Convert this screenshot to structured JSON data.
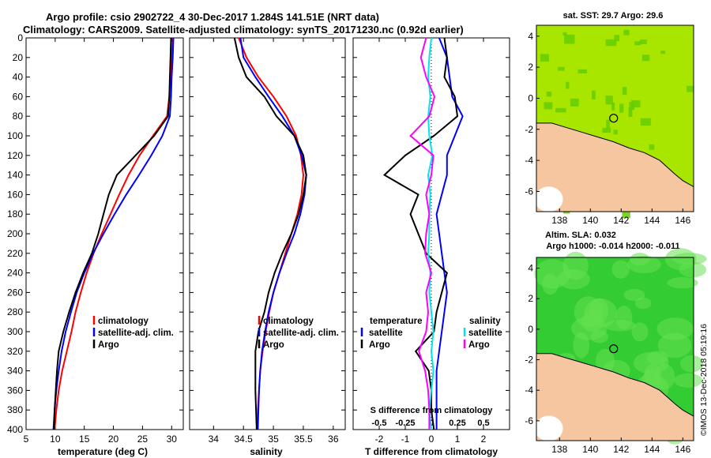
{
  "titles": {
    "line1": "Argo profile: csio 2902722_4 30-Dec-2017 1.284S 141.51E (NRT data)",
    "line2": "Climatology: CARS2009. Satellite-adjusted climatology: synTS_20171230.nc (0.92d earlier)"
  },
  "colors": {
    "climatology": "#ff0000",
    "satellite": "#0000ff",
    "argo": "#000000",
    "sal_satellite": "#00e5ee",
    "sal_argo": "#ff00ff",
    "land": "#f5c6a0",
    "sst_sea": "#a8e600",
    "sst_sea_dark": "#66cc00",
    "sla_sea": "#33cc33",
    "sla_sea_light": "#66e050"
  },
  "depth_axis": {
    "range": [
      0,
      400
    ],
    "ticks": [
      "0",
      "20",
      "40",
      "60",
      "80",
      "100",
      "120",
      "140",
      "160",
      "180",
      "200",
      "220",
      "240",
      "260",
      "280",
      "300",
      "320",
      "340",
      "360",
      "380",
      "400"
    ]
  },
  "chart_data": [
    {
      "type": "line",
      "name": "temperature",
      "xlabel": "temperature (deg C)",
      "xlim": [
        5,
        32
      ],
      "xticks": [
        "5",
        "10",
        "15",
        "20",
        "25",
        "30"
      ],
      "xtick_values": [
        5,
        10,
        15,
        20,
        25,
        30
      ],
      "legend": [
        "climatology",
        "satellite-adj. clim.",
        "Argo"
      ],
      "y": [
        0,
        20,
        40,
        60,
        80,
        100,
        120,
        140,
        160,
        180,
        200,
        220,
        240,
        260,
        280,
        300,
        320,
        340,
        360,
        380,
        400
      ],
      "series": [
        {
          "name": "climatology",
          "color": "climatology",
          "x": [
            30.2,
            30.0,
            29.8,
            29.6,
            29.2,
            26.8,
            24.5,
            22.6,
            21.0,
            19.5,
            18.0,
            16.6,
            15.4,
            14.4,
            13.5,
            12.8,
            12.0,
            11.2,
            10.6,
            10.2,
            9.9
          ]
        },
        {
          "name": "satellite-adj. clim.",
          "color": "satellite",
          "x": [
            30.3,
            30.2,
            30.0,
            29.9,
            29.7,
            28.4,
            26.5,
            24.4,
            22.2,
            20.2,
            18.3,
            16.5,
            15.0,
            13.7,
            12.7,
            11.8,
            11.1,
            10.6,
            10.2,
            9.9,
            9.7
          ]
        },
        {
          "name": "Argo",
          "color": "argo",
          "x": [
            29.9,
            29.8,
            29.7,
            29.6,
            29.4,
            27.0,
            23.8,
            20.6,
            19.2,
            18.3,
            17.4,
            16.3,
            14.8,
            13.5,
            12.4,
            11.4,
            10.6,
            10.3,
            10.1,
            9.9,
            9.8
          ]
        }
      ]
    },
    {
      "type": "line",
      "name": "salinity",
      "xlabel": "salinity",
      "xlim": [
        33.6,
        36.2
      ],
      "xticks": [
        "34",
        "34.5",
        "35",
        "35.5",
        "36"
      ],
      "xtick_values": [
        34,
        34.5,
        35,
        35.5,
        36
      ],
      "legend": [
        "climatology",
        "satellite-adj. clim.",
        "Argo"
      ],
      "y": [
        0,
        20,
        40,
        60,
        80,
        100,
        120,
        140,
        160,
        180,
        200,
        220,
        240,
        260,
        280,
        300,
        320,
        340,
        360,
        380,
        400
      ],
      "series": [
        {
          "name": "climatology",
          "color": "climatology",
          "x": [
            34.42,
            34.55,
            34.75,
            35.0,
            35.22,
            35.38,
            35.46,
            35.5,
            35.47,
            35.4,
            35.3,
            35.2,
            35.1,
            35.0,
            34.93,
            34.87,
            34.82,
            34.78,
            34.76,
            34.74,
            34.73
          ]
        },
        {
          "name": "satellite-adj. clim.",
          "color": "satellite",
          "x": [
            34.45,
            34.5,
            34.7,
            34.92,
            35.15,
            35.35,
            35.47,
            35.55,
            35.52,
            35.45,
            35.35,
            35.22,
            35.1,
            35.0,
            34.92,
            34.86,
            34.81,
            34.78,
            34.76,
            34.75,
            34.74
          ]
        },
        {
          "name": "Argo",
          "color": "argo",
          "x": [
            34.35,
            34.42,
            34.55,
            34.85,
            35.05,
            35.35,
            35.5,
            35.55,
            35.5,
            35.42,
            35.3,
            35.15,
            35.02,
            34.92,
            34.85,
            34.75,
            34.7,
            34.7,
            34.7,
            34.71,
            34.72
          ]
        }
      ]
    },
    {
      "type": "line",
      "name": "difference",
      "xlabel": "T difference from climatology",
      "xlabel_top": "S difference from climatology",
      "xlim": [
        -3,
        3
      ],
      "xticks": [
        "-2",
        "-1",
        "0",
        "1",
        "2"
      ],
      "xtick_values": [
        -2,
        -1,
        0,
        1,
        2
      ],
      "xlim_top": [
        -0.75,
        0.75
      ],
      "xticks_top": [
        "-0.5",
        "-0.25",
        "0",
        "0.25",
        "0.5"
      ],
      "xtick_values_top": [
        -0.5,
        -0.25,
        0,
        0.25,
        0.5
      ],
      "legend_left": {
        "header": "temperature",
        "items": [
          "satellite",
          "Argo"
        ]
      },
      "legend_right": {
        "header": "salinity",
        "items": [
          "satellite",
          "Argo"
        ]
      },
      "y": [
        0,
        20,
        40,
        60,
        80,
        100,
        120,
        140,
        160,
        180,
        200,
        220,
        240,
        260,
        280,
        300,
        320,
        340,
        360,
        380,
        400
      ],
      "series": [
        {
          "name": "T satellite",
          "color": "satellite",
          "x": [
            0.3,
            0.6,
            0.7,
            0.8,
            1.2,
            0.9,
            0.6,
            0.6,
            0.4,
            0.2,
            0.3,
            0.4,
            0.5,
            0.6,
            0.5,
            0.4,
            0.3,
            0.2,
            0.2,
            0.2,
            0.2
          ]
        },
        {
          "name": "T Argo",
          "color": "argo",
          "x": [
            0.5,
            0.6,
            0.5,
            0.9,
            1.0,
            0.1,
            -1.0,
            -1.8,
            -0.5,
            -0.8,
            -0.5,
            -0.2,
            0.6,
            0.4,
            0.2,
            0.1,
            -0.6,
            -0.1,
            0.0,
            0.0,
            0.1
          ]
        },
        {
          "name": "S satellite",
          "color": "sal_satellite",
          "x": [
            0.0,
            -0.02,
            -0.03,
            -0.01,
            -0.03,
            -0.02,
            0.01,
            -0.03,
            -0.01,
            -0.02,
            -0.02,
            -0.03,
            -0.01,
            -0.02,
            0.0,
            0.02,
            0.0,
            0.02,
            0.0,
            -0.02,
            0.0
          ]
        },
        {
          "name": "S Argo",
          "color": "sal_argo",
          "x": [
            -0.05,
            -0.1,
            -0.05,
            0.03,
            -0.02,
            -0.2,
            0.02,
            0.0,
            -0.05,
            -0.02,
            -0.05,
            -0.06,
            0.0,
            -0.05,
            -0.03,
            -0.05,
            -0.12,
            -0.06,
            -0.03,
            -0.02,
            -0.02
          ]
        }
      ]
    }
  ],
  "maps": {
    "sst": {
      "title": "sat. SST: 29.7 Argo: 29.6",
      "xticks": [
        "138",
        "140",
        "142",
        "144",
        "146"
      ],
      "yticks": [
        "4",
        "2",
        "0",
        "-2",
        "-4",
        "-6"
      ]
    },
    "sla": {
      "title_line1": "Altim. SLA: 0.032",
      "title_line2": "Argo h1000: -0.014 h2000: -0.011",
      "xticks": [
        "138",
        "140",
        "142",
        "144",
        "146"
      ],
      "yticks": [
        "4",
        "2",
        "0",
        "-2",
        "-4",
        "-6"
      ]
    }
  },
  "timestamp": "©IMOS 13-Dec-2018 05:19:16"
}
